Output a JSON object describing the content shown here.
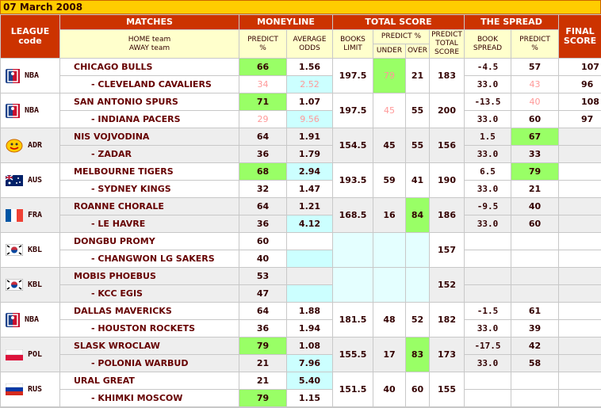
{
  "date": "07 March 2008",
  "header": {
    "league": "LEAGUE code",
    "matches": "MATCHES",
    "moneyline": "MONEYLINE",
    "total_score": "TOTAL SCORE",
    "spread": "THE SPREAD",
    "final_score": "FINAL SCORE",
    "home_team": "HOME team",
    "away_team": "AWAY team",
    "ml_predict": "PREDICT %",
    "avg_odds": "AVERAGE ODDS",
    "books_limit": "BOOKS LIMIT",
    "ts_predict": "PREDICT %",
    "under": "UNDER",
    "over": "OVER",
    "predict_total": "PREDICT TOTAL SCORE",
    "book_spread": "BOOK SPREAD",
    "spread_predict": "PREDICT %"
  },
  "games": [
    {
      "league": "NBA",
      "home": "CHICAGO BULLS",
      "away": "- CLEVELAND CAVALIERS",
      "predict": [
        66,
        34
      ],
      "odds": [
        1.56,
        2.52
      ],
      "books_limit": 197.5,
      "under": 79,
      "over": 21,
      "predict_total": 183,
      "book_spread": [
        -4.5,
        "33.0"
      ],
      "spread_predict": [
        57,
        43
      ],
      "final": [
        107,
        96
      ]
    },
    {
      "league": "NBA",
      "home": "SAN ANTONIO SPURS",
      "away": "- INDIANA PACERS",
      "predict": [
        71,
        29
      ],
      "odds": [
        1.07,
        9.56
      ],
      "books_limit": 197.5,
      "under": 45,
      "over": 55,
      "predict_total": 200,
      "book_spread": [
        -13.5,
        "33.0"
      ],
      "spread_predict": [
        40,
        60
      ],
      "final": [
        108,
        97
      ]
    },
    {
      "league": "ADR",
      "home": "NIS VOJVODINA",
      "away": "- ZADAR",
      "predict": [
        64,
        36
      ],
      "odds": [
        1.91,
        1.79
      ],
      "books_limit": 154.5,
      "under": 45,
      "over": 55,
      "predict_total": 156,
      "book_spread": [
        1.5,
        "33.0"
      ],
      "spread_predict": [
        67,
        33
      ]
    },
    {
      "league": "AUS",
      "home": "MELBOURNE TIGERS",
      "away": "- SYDNEY KINGS",
      "predict": [
        68,
        32
      ],
      "odds": [
        2.94,
        1.47
      ],
      "books_limit": 193.5,
      "under": 59,
      "over": 41,
      "predict_total": 190,
      "book_spread": [
        6.5,
        "33.0"
      ],
      "spread_predict": [
        79,
        21
      ]
    },
    {
      "league": "FRA",
      "home": "ROANNE CHORALE",
      "away": "- LE HAVRE",
      "predict": [
        64,
        36
      ],
      "odds": [
        1.21,
        4.12
      ],
      "books_limit": 168.5,
      "under": 16,
      "over": 84,
      "predict_total": 186,
      "book_spread": [
        -9.5,
        "33.0"
      ],
      "spread_predict": [
        40,
        60
      ]
    },
    {
      "league": "KBL",
      "home": "DONGBU PROMY",
      "away": "- CHANGWON LG SAKERS",
      "predict": [
        60,
        40
      ],
      "predict_total": 157
    },
    {
      "league": "KBL",
      "home": "MOBIS PHOEBUS",
      "away": "- KCC EGIS",
      "predict": [
        53,
        47
      ],
      "predict_total": 152
    },
    {
      "league": "NBA",
      "home": "DALLAS MAVERICKS",
      "away": "- HOUSTON ROCKETS",
      "predict": [
        64,
        36
      ],
      "odds": [
        1.88,
        1.94
      ],
      "books_limit": 181.5,
      "under": 48,
      "over": 52,
      "predict_total": 182,
      "book_spread": [
        -1.5,
        "33.0"
      ],
      "spread_predict": [
        61,
        39
      ]
    },
    {
      "league": "POL",
      "home": "SLASK WROCLAW",
      "away": "- POLONIA WARBUD",
      "predict": [
        79,
        21
      ],
      "odds": [
        1.08,
        7.96
      ],
      "books_limit": 155.5,
      "under": 17,
      "over": 83,
      "predict_total": 173,
      "book_spread": [
        -17.5,
        "33.0"
      ],
      "spread_predict": [
        42,
        58
      ]
    },
    {
      "league": "RUS",
      "home": "URAL GREAT",
      "away": "- KHIMKI MOSCOW",
      "predict": [
        21,
        79
      ],
      "odds": [
        "5.40",
        1.15
      ],
      "books_limit": 151.5,
      "under": 40,
      "over": 60,
      "predict_total": 155
    }
  ]
}
